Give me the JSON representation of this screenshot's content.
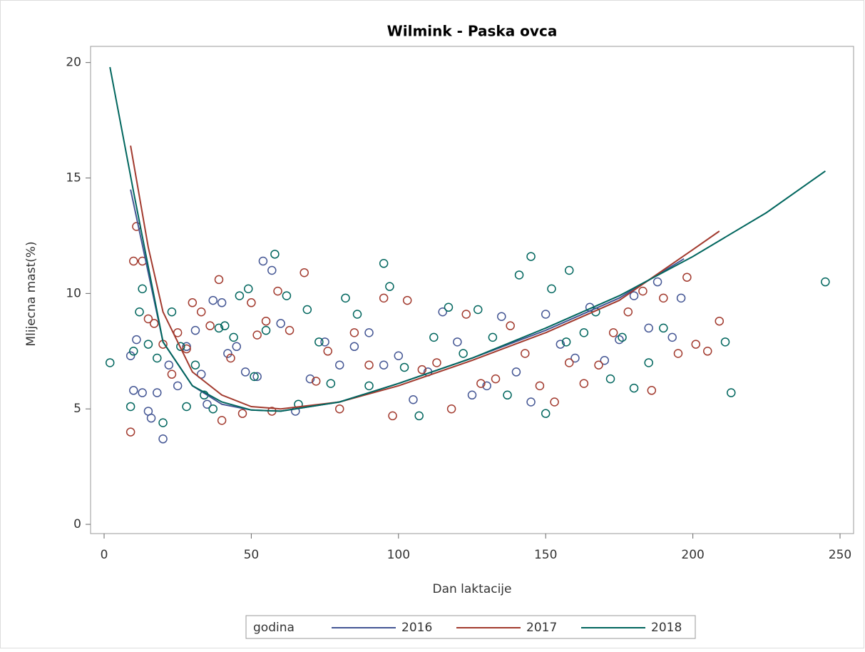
{
  "chart_data": {
    "type": "scatter",
    "title": "Wilmink - Paska ovca",
    "x_label": "Dan laktacije",
    "y_label": "Mlijecna mast(%)",
    "legend_title": "godina",
    "legend": "bottom",
    "xlim": [
      -4.6,
      254.6
    ],
    "ylim": [
      -0.4,
      20.7
    ],
    "xticks": [
      0,
      50,
      100,
      150,
      200,
      250
    ],
    "yticks": [
      0,
      5,
      10,
      15,
      20
    ],
    "series": [
      {
        "name": "2016",
        "color": "#445694",
        "x": [
          9,
          10,
          11,
          13,
          15,
          16,
          18,
          20,
          22,
          25,
          28,
          31,
          33,
          35,
          37,
          40,
          42,
          45,
          48,
          52,
          54,
          57,
          60,
          65,
          70,
          75,
          80,
          85,
          90,
          95,
          100,
          105,
          110,
          115,
          120,
          125,
          130,
          135,
          140,
          145,
          150,
          155,
          160,
          165,
          170,
          175,
          180,
          185,
          188,
          193,
          196
        ],
        "values": [
          7.3,
          5.8,
          8.0,
          5.7,
          4.9,
          4.6,
          5.7,
          3.7,
          6.9,
          6.0,
          7.7,
          8.4,
          6.5,
          5.2,
          9.7,
          9.6,
          7.4,
          7.7,
          6.6,
          6.4,
          11.4,
          11.0,
          8.7,
          4.9,
          6.3,
          7.9,
          6.9,
          7.7,
          8.3,
          6.9,
          7.3,
          5.4,
          6.6,
          9.2,
          7.9,
          5.6,
          6.0,
          9.0,
          6.6,
          5.3,
          9.1,
          7.8,
          7.2,
          9.4,
          7.1,
          8.0,
          9.9,
          8.5,
          10.5,
          8.1,
          9.8
        ],
        "fit": {
          "x": [
            9,
            20,
            30,
            40,
            50,
            60,
            80,
            100,
            125,
            150,
            175,
            197
          ],
          "values": [
            14.5,
            7.9,
            6.0,
            5.2,
            4.95,
            4.9,
            5.3,
            6.1,
            7.2,
            8.4,
            9.8,
            11.5
          ]
        }
      },
      {
        "name": "2017",
        "color": "#A23A2E",
        "x": [
          9,
          10,
          11,
          13,
          15,
          17,
          20,
          23,
          25,
          28,
          30,
          33,
          36,
          39,
          40,
          43,
          47,
          50,
          52,
          55,
          57,
          59,
          63,
          68,
          72,
          76,
          80,
          85,
          90,
          95,
          98,
          103,
          108,
          113,
          118,
          123,
          128,
          133,
          138,
          143,
          148,
          153,
          158,
          163,
          168,
          173,
          178,
          183,
          186,
          190,
          195,
          198,
          201,
          205,
          209
        ],
        "values": [
          4.0,
          11.4,
          12.9,
          11.4,
          8.9,
          8.7,
          7.8,
          6.5,
          8.3,
          7.6,
          9.6,
          9.2,
          8.6,
          10.6,
          4.5,
          7.2,
          4.8,
          9.6,
          8.2,
          8.8,
          4.9,
          10.1,
          8.4,
          10.9,
          6.2,
          7.5,
          5.0,
          8.3,
          6.9,
          9.8,
          4.7,
          9.7,
          6.7,
          7.0,
          5.0,
          9.1,
          6.1,
          6.3,
          8.6,
          7.4,
          6.0,
          5.3,
          7.0,
          6.1,
          6.9,
          8.3,
          9.2,
          10.1,
          5.8,
          9.8,
          7.4,
          10.7,
          7.8,
          7.5,
          8.8
        ],
        "fit": {
          "x": [
            9,
            15,
            20,
            30,
            40,
            50,
            60,
            80,
            100,
            125,
            150,
            175,
            200,
            209
          ],
          "values": [
            16.4,
            12.0,
            9.2,
            6.6,
            5.6,
            5.1,
            5.0,
            5.3,
            6.0,
            7.1,
            8.3,
            9.7,
            11.9,
            12.7
          ]
        }
      },
      {
        "name": "2018",
        "color": "#01665E",
        "x": [
          2,
          9,
          10,
          12,
          13,
          15,
          18,
          20,
          23,
          26,
          28,
          31,
          34,
          37,
          39,
          41,
          44,
          46,
          49,
          51,
          55,
          58,
          62,
          66,
          69,
          73,
          77,
          82,
          86,
          90,
          95,
          97,
          102,
          107,
          112,
          117,
          122,
          127,
          132,
          137,
          141,
          145,
          150,
          152,
          157,
          158,
          163,
          167,
          172,
          176,
          180,
          185,
          190,
          211,
          213,
          245
        ],
        "values": [
          7.0,
          5.1,
          7.5,
          9.2,
          10.2,
          7.8,
          7.2,
          4.4,
          9.2,
          7.7,
          5.1,
          6.9,
          5.6,
          5.0,
          8.5,
          8.6,
          8.1,
          9.9,
          10.2,
          6.4,
          8.4,
          11.7,
          9.9,
          5.2,
          9.3,
          7.9,
          6.1,
          9.8,
          9.1,
          6.0,
          11.3,
          10.3,
          6.8,
          4.7,
          8.1,
          9.4,
          7.4,
          9.3,
          8.1,
          5.6,
          10.8,
          11.6,
          4.8,
          10.2,
          7.9,
          11.0,
          8.3,
          9.2,
          6.3,
          8.1,
          5.9,
          7.0,
          8.5,
          7.9,
          5.7,
          10.5
        ],
        "fit": {
          "x": [
            2,
            10,
            20,
            30,
            40,
            50,
            60,
            80,
            100,
            125,
            150,
            175,
            200,
            225,
            245
          ],
          "values": [
            19.8,
            14.4,
            7.9,
            6.0,
            5.3,
            4.95,
            4.9,
            5.3,
            6.1,
            7.2,
            8.5,
            9.9,
            11.6,
            13.5,
            15.3
          ]
        }
      }
    ]
  }
}
